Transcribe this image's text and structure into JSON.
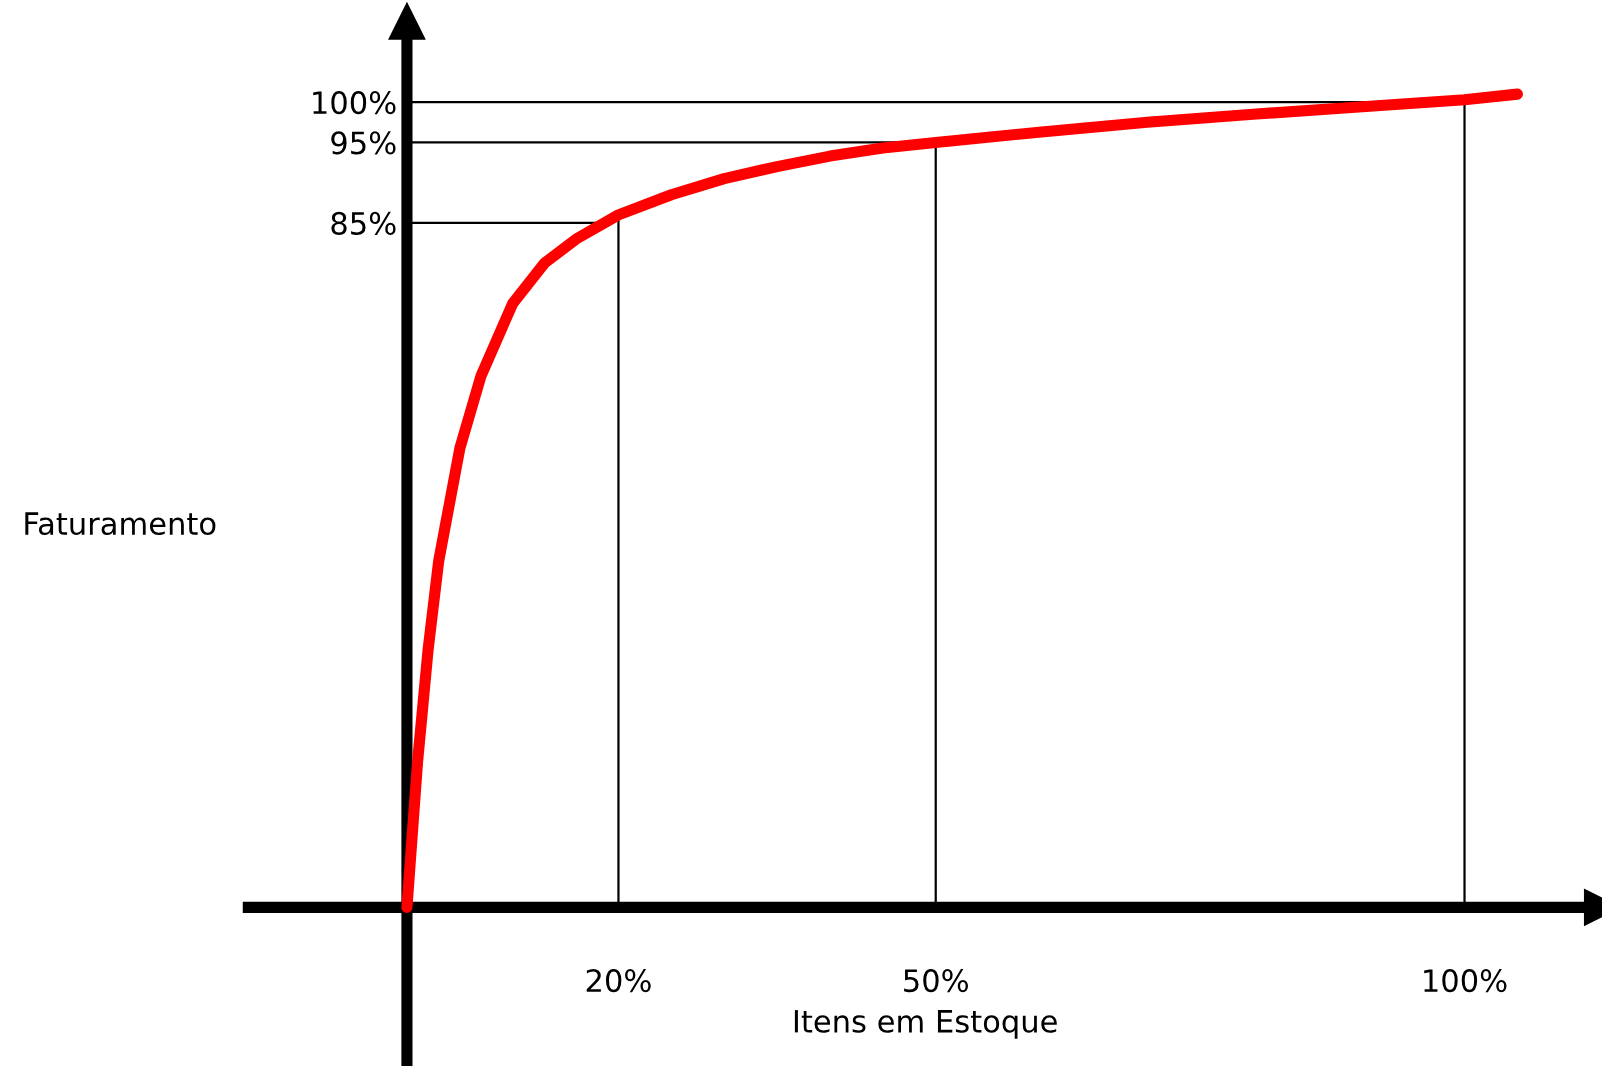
{
  "chart_data": {
    "type": "line",
    "xlabel": "Itens em Estoque",
    "ylabel": "Faturamento",
    "x": [
      0,
      1,
      2,
      3,
      5,
      7,
      10,
      13,
      16,
      20,
      25,
      30,
      35,
      40,
      45,
      50,
      60,
      70,
      80,
      90,
      100,
      105
    ],
    "series": [
      {
        "color": "#ff0000",
        "values": [
          0,
          18,
          32,
          43,
          57,
          66,
          75,
          80,
          83,
          86,
          88.5,
          90.5,
          92,
          93.3,
          94.3,
          95,
          96.3,
          97.5,
          98.5,
          99.4,
          100.3,
          101
        ]
      }
    ],
    "xlim": [
      -15,
      113
    ],
    "ylim": [
      -19,
      110
    ],
    "xticks": [
      {
        "value": 20,
        "label": "20%"
      },
      {
        "value": 50,
        "label": "50%"
      },
      {
        "value": 100,
        "label": "100%"
      }
    ],
    "yticks": [
      {
        "value": 85,
        "label": "85%"
      },
      {
        "value": 95,
        "label": "95%"
      },
      {
        "value": 100,
        "label": "100%"
      }
    ],
    "ref_lines": [
      {
        "axis": "y",
        "value": 85,
        "color": "#000000"
      },
      {
        "axis": "y",
        "value": 95,
        "color": "#000000"
      },
      {
        "axis": "y",
        "value": 100,
        "color": "#000000"
      },
      {
        "axis": "x",
        "value": 20,
        "color": "#000000"
      },
      {
        "axis": "x",
        "value": 50,
        "color": "#000000"
      },
      {
        "axis": "x",
        "value": 100,
        "color": "#000000"
      }
    ],
    "grid": false,
    "legend": false,
    "marker": "none",
    "line_style": "solid"
  }
}
